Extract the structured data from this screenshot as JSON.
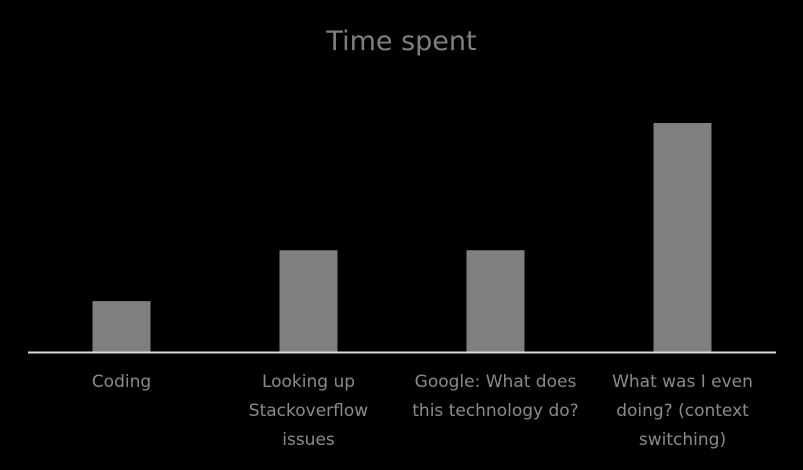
{
  "chart_data": {
    "type": "bar",
    "title": "Time spent",
    "categories": [
      "Coding",
      "Looking up\nStackoverflow\nissues",
      "Google: What does\nthis technology do?",
      "What was I even\ndoing? (context\nswitching)"
    ],
    "series": [
      {
        "values": [
          1,
          2,
          2,
          4.5
        ]
      }
    ],
    "ylim": [
      0,
      4.5
    ],
    "grid": false,
    "bar_color": "#7f7f7f",
    "axis_color": "#d9d9d9",
    "text_color": "#8a8a8a",
    "background": "#000000"
  }
}
